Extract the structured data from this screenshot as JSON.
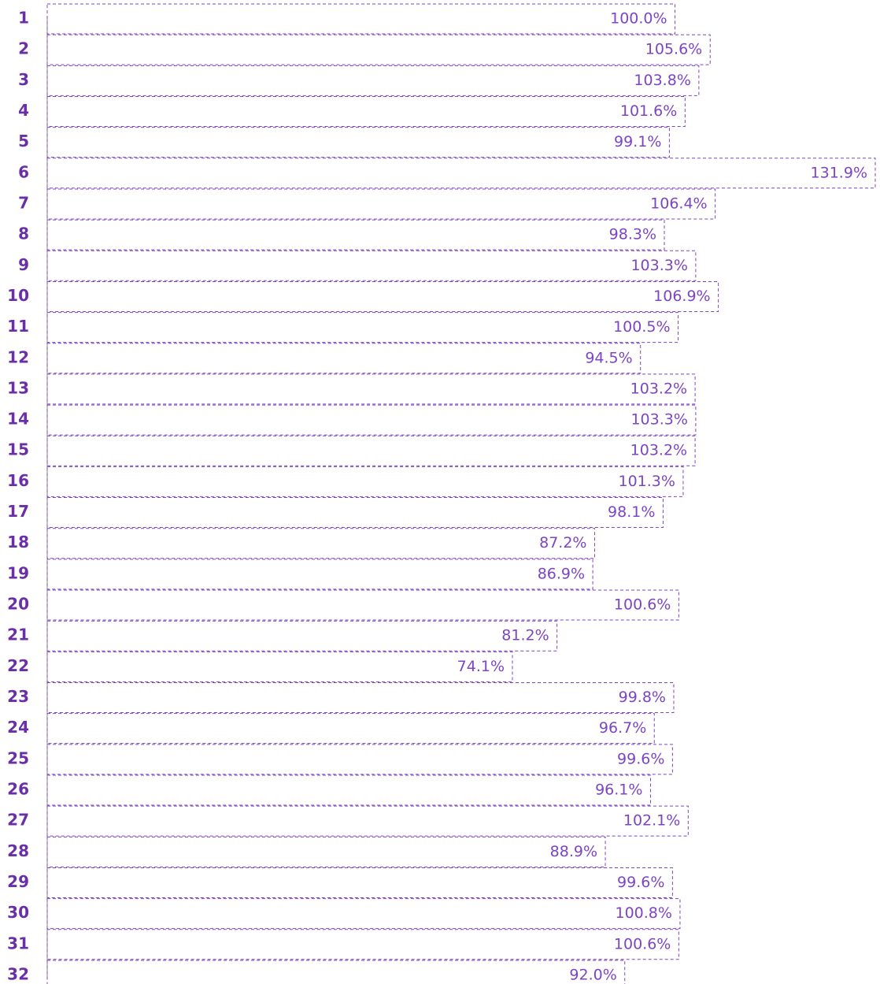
{
  "chart_data": {
    "type": "bar",
    "orientation": "horizontal",
    "categories": [
      "1",
      "2",
      "3",
      "4",
      "5",
      "6",
      "7",
      "8",
      "9",
      "10",
      "11",
      "12",
      "13",
      "14",
      "15",
      "16",
      "17",
      "18",
      "19",
      "20",
      "21",
      "22",
      "23",
      "24",
      "25",
      "26",
      "27",
      "28",
      "29",
      "30",
      "31",
      "32"
    ],
    "values": [
      100.0,
      105.6,
      103.8,
      101.6,
      99.1,
      131.9,
      106.4,
      98.3,
      103.3,
      106.9,
      100.5,
      94.5,
      103.2,
      103.3,
      103.2,
      101.3,
      98.1,
      87.2,
      86.9,
      100.6,
      81.2,
      74.1,
      99.8,
      96.7,
      99.6,
      96.1,
      102.1,
      88.9,
      99.6,
      100.8,
      100.6,
      92.0
    ],
    "value_labels": [
      "100.0%",
      "105.6%",
      "103.8%",
      "101.6%",
      "99.1%",
      "131.9%",
      "106.4%",
      "98.3%",
      "103.3%",
      "106.9%",
      "100.5%",
      "94.5%",
      "103.2%",
      "103.3%",
      "103.2%",
      "101.3%",
      "98.1%",
      "87.2%",
      "86.9%",
      "100.6%",
      "81.2%",
      "74.1%",
      "99.8%",
      "96.7%",
      "99.6%",
      "96.1%",
      "102.1%",
      "88.9%",
      "99.6%",
      "100.8%",
      "100.6%",
      "92.0%"
    ],
    "color": "#7d44c4"
  }
}
